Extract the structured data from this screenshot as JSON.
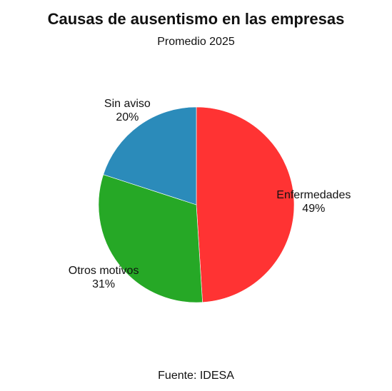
{
  "chart_data": {
    "type": "pie",
    "title": "Causas de ausentismo en las empresas",
    "subtitle": "Promedio 2025",
    "source": "Fuente: IDESA",
    "slices": [
      {
        "label": "Enfermedades",
        "value": 49,
        "value_label": "49%",
        "color": "#ff3333"
      },
      {
        "label": "Otros motivos",
        "value": 31,
        "value_label": "31%",
        "color": "#26a826"
      },
      {
        "label": "Sin aviso",
        "value": 20,
        "value_label": "20%",
        "color": "#2b8bba"
      }
    ]
  }
}
